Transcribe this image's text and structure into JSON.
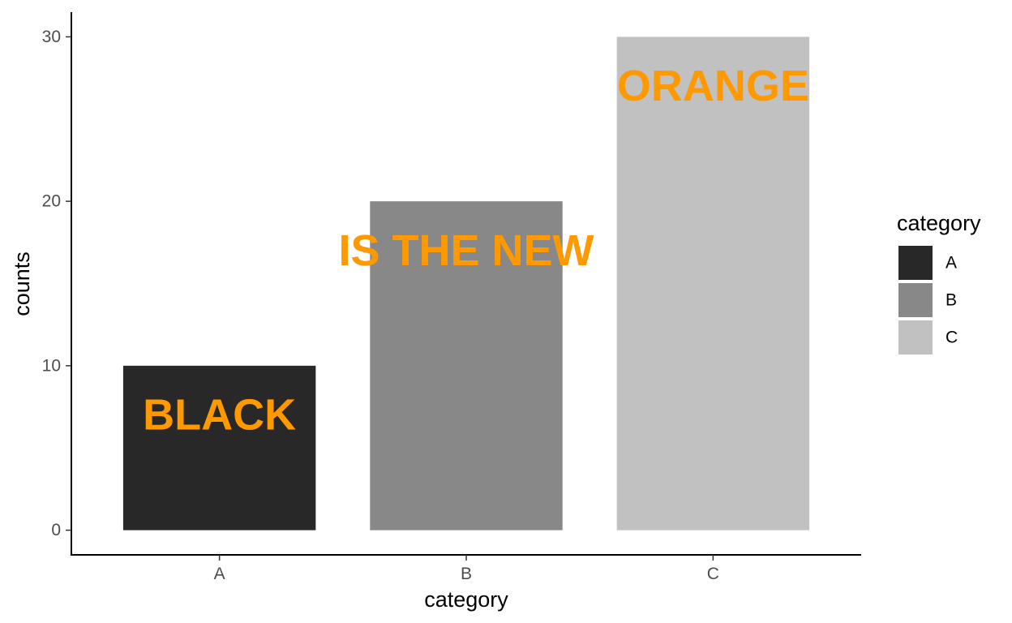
{
  "chart_data": {
    "type": "bar",
    "categories": [
      "A",
      "B",
      "C"
    ],
    "values": [
      10,
      20,
      30
    ],
    "colors": [
      "#282828",
      "#888888",
      "#c1c1c1"
    ],
    "annotations": [
      "BLACK",
      "IS THE NEW",
      "ORANGE"
    ],
    "annotation_y": [
      7,
      17,
      27
    ],
    "annotation_color": "#ff9900",
    "title": "",
    "xlabel": "category",
    "ylabel": "counts",
    "ylim": [
      -1.5,
      31.5
    ],
    "yticks": [
      0,
      10,
      20,
      30
    ],
    "grid": false,
    "legend": {
      "title": "category",
      "position": "right",
      "entries": [
        "A",
        "B",
        "C"
      ]
    }
  }
}
